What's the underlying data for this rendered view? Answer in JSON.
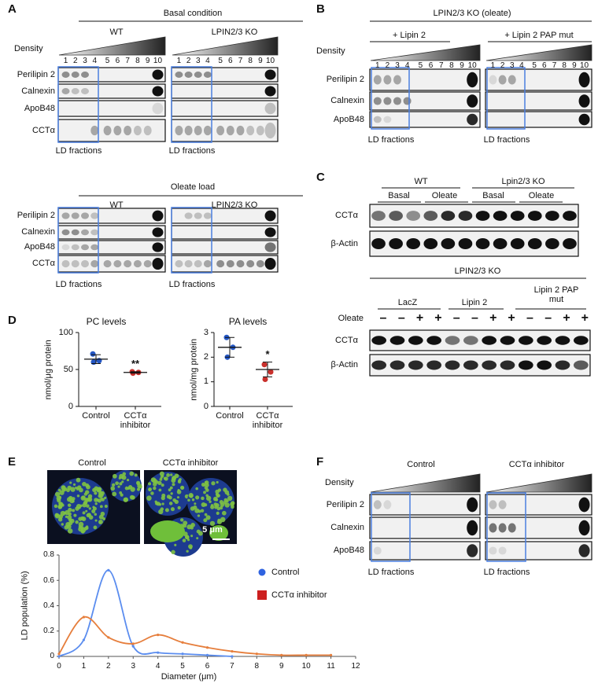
{
  "panel_a": {
    "letter": "A",
    "density": "Density",
    "lanes": [
      1,
      2,
      3,
      4,
      5,
      6,
      7,
      8,
      9,
      10
    ],
    "ld_label": "LD fractions",
    "sections": [
      {
        "title": "Basal condition",
        "groups": [
          "WT",
          "LPIN2/3 KO"
        ],
        "rows": [
          "Perilipin 2",
          "Calnexin",
          "ApoB48",
          "CCTα"
        ]
      },
      {
        "title": "Oleate load",
        "groups": [
          "WT",
          "LPIN2/3 KO"
        ],
        "rows": [
          "Perilipin 2",
          "Calnexin",
          "ApoB48",
          "CCTα"
        ]
      }
    ]
  },
  "panel_b": {
    "letter": "B",
    "title": "LPIN2/3 KO (oleate)",
    "groups": [
      "+ Lipin 2",
      "+ Lipin 2 PAP mut"
    ],
    "density": "Density",
    "lanes": [
      1,
      2,
      3,
      4,
      5,
      6,
      7,
      8,
      9,
      10
    ],
    "rows": [
      "Perilipin 2",
      "Calnexin",
      "ApoB48"
    ],
    "ld_label": "LD fractions"
  },
  "panel_c": {
    "letter": "C",
    "top": {
      "groups": [
        {
          "name": "WT",
          "conditions": [
            "Basal",
            "Oleate"
          ]
        },
        {
          "name": "Lpin2/3 KO",
          "conditions": [
            "Basal",
            "Oleate"
          ]
        }
      ],
      "rows": [
        "CCTα",
        "β-Actin"
      ]
    },
    "bottom": {
      "title": "LPIN2/3 KO",
      "groups": [
        "LacZ",
        "Lipin 2",
        "Lipin 2 PAP mut"
      ],
      "treatment": "Oleate",
      "treatment_signs": [
        "–",
        "–",
        "+",
        "+",
        "–",
        "–",
        "+",
        "+",
        "–",
        "–",
        "+",
        "+"
      ],
      "rows": [
        "CCTα",
        "β-Actin"
      ]
    }
  },
  "panel_d": {
    "letter": "D",
    "chart_data": [
      {
        "type": "scatter",
        "title": "PC levels",
        "y_label": "nmol/μg protein",
        "categories": [
          "Control",
          "CCTα inhibitor"
        ],
        "colors": [
          "#2457c5",
          "#c9302c"
        ],
        "points": [
          [
            71,
            62,
            60
          ],
          [
            47,
            46,
            45
          ]
        ],
        "means": [
          64,
          46
        ],
        "errors": [
          6,
          1
        ],
        "significance": [
          null,
          "**"
        ],
        "ylim": [
          0,
          100
        ],
        "yticks": [
          0,
          50,
          100
        ]
      },
      {
        "type": "scatter",
        "title": "PA levels",
        "y_label": "nmol/mg protein",
        "categories": [
          "Control",
          "CCTα inhibitor"
        ],
        "colors": [
          "#2457c5",
          "#c9302c"
        ],
        "points": [
          [
            2.8,
            2.4,
            2.0
          ],
          [
            1.7,
            1.4,
            1.1
          ]
        ],
        "means": [
          2.4,
          1.5
        ],
        "errors": [
          0.4,
          0.3
        ],
        "significance": [
          null,
          "*"
        ],
        "ylim": [
          0,
          3
        ],
        "yticks": [
          0,
          1,
          2,
          3
        ]
      }
    ]
  },
  "panel_e": {
    "letter": "E",
    "images": [
      "Control",
      "CCTα inhibitor"
    ],
    "scale_bar": "5 μm",
    "chart_data": {
      "type": "line",
      "x_label": "Diameter (μm)",
      "y_label": "LD population (%)",
      "x": [
        0,
        1,
        2,
        3,
        4,
        5,
        6,
        7,
        8,
        9,
        10,
        11
      ],
      "xlim": [
        0,
        12
      ],
      "xticks": [
        0,
        1,
        2,
        3,
        4,
        5,
        6,
        7,
        8,
        9,
        10,
        11,
        12
      ],
      "ylim": [
        0,
        0.8
      ],
      "yticks": [
        0,
        0.2,
        0.4,
        0.6,
        0.8
      ],
      "series": [
        {
          "name": "Control",
          "color": "#5b8def",
          "marker_color": "#2f63e0",
          "marker": "circle",
          "values": [
            0,
            0.13,
            0.68,
            0.08,
            0.03,
            0.02,
            0.01,
            0,
            null,
            null,
            null,
            null
          ]
        },
        {
          "name": "CCTα inhibitor",
          "color": "#e67e3c",
          "marker_color": "#cc1f1f",
          "marker": "square",
          "values": [
            0.02,
            0.31,
            0.15,
            0.1,
            0.17,
            0.11,
            0.07,
            0.04,
            0.02,
            0.01,
            0.01,
            0.01
          ]
        }
      ]
    }
  },
  "panel_f": {
    "letter": "F",
    "groups": [
      "Control",
      "CCTα inhibitor"
    ],
    "density": "Density",
    "rows": [
      "Perilipin 2",
      "Calnexin",
      "ApoB48"
    ],
    "ld_label": "LD fractions"
  }
}
